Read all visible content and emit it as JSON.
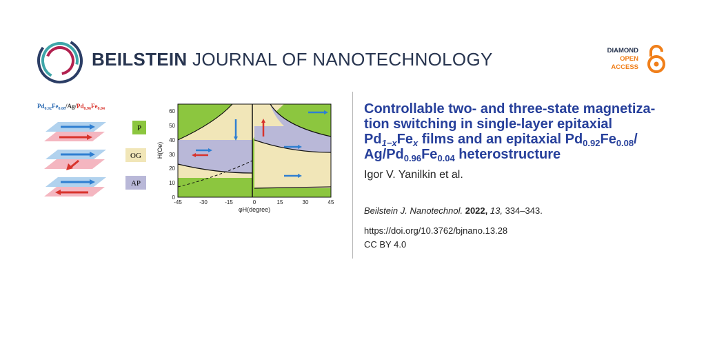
{
  "header": {
    "brand_bold": "BEILSTEIN",
    "brand_light": "JOURNAL OF NANOTECHNOLOGY",
    "badge": {
      "line1": "DIAMOND",
      "line2": "OPEN",
      "line3": "ACCESS"
    }
  },
  "article": {
    "title_line1": "Controllable two- and three-state magnetiza-",
    "title_line2": "tion switching in single-layer epitaxial",
    "title_pd": "Pd",
    "title_sub1": "1−x",
    "title_fe": "Fe",
    "title_sub2": "x",
    "title_mid": " films and an epitaxial Pd",
    "title_sub3": "0.92",
    "title_fe2": "Fe",
    "title_sub4": "0.08",
    "title_slash": "/",
    "title_ag": "Ag/Pd",
    "title_sub5": "0.96",
    "title_fe3": "Fe",
    "title_sub6": "0.04",
    "title_end": " heterostructure",
    "authors": "Igor V. Yanilkin et al.",
    "journal": "Beilstein J. Nanotechnol.",
    "year": "2022,",
    "volume": "13,",
    "pages": "334–343.",
    "doi": "https://doi.org/10.3762/bjnano.13.28",
    "license": "CC BY 4.0"
  },
  "figure": {
    "legend_title_a": "Pd",
    "legend_sub_a": "0.92",
    "legend_fe_a": "Fe",
    "legend_sub_b": "0.08",
    "legend_mid": "/Ag/",
    "legend_pd_c": "Pd",
    "legend_sub_c": "0.96",
    "legend_fe_c": "Fe",
    "legend_sub_d": "0.04",
    "states": [
      "P",
      "OG",
      "AP"
    ],
    "colors": {
      "P": "#8cc63f",
      "OG": "#f1e6b8",
      "AP": "#b9b8d8"
    },
    "chart_data": {
      "type": "heatmap",
      "xlabel": "φH(degree)",
      "ylabel": "H(Oe)",
      "x_ticks": [
        "-45",
        "-30",
        "-15",
        "0",
        "15",
        "30",
        "45"
      ],
      "y_ticks": [
        "0",
        "10",
        "20",
        "30",
        "40",
        "50",
        "60"
      ],
      "xlim": [
        -45,
        45
      ],
      "ylim": [
        0,
        65
      ]
    }
  }
}
